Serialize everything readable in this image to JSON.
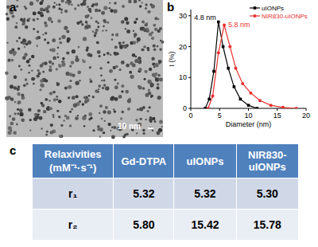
{
  "panel_labels": [
    "a",
    "b",
    "c"
  ],
  "image": {
    "scale_bar": "10 nm"
  },
  "chart_data": {
    "type": "line",
    "xlabel": "Diameter (nm)",
    "ylabel": "I (%)",
    "xlim": [
      0,
      20
    ],
    "xticks": [
      0,
      5,
      10,
      15,
      20
    ],
    "ylim": [
      0,
      32
    ],
    "yticks": [
      0,
      10,
      20,
      30
    ],
    "legend": "upper right",
    "series": [
      {
        "name": "uIONPs",
        "color": "#000000",
        "marker": "square",
        "x": [
          2.5,
          3.2,
          4.0,
          4.8,
          5.6,
          6.5,
          7.5,
          8.6,
          10.0,
          11.5
        ],
        "values": [
          0,
          3,
          12,
          28,
          20,
          13,
          7,
          3,
          1,
          0
        ]
      },
      {
        "name": "NIR830-uIONPs",
        "color": "#e8312f",
        "marker": "circle",
        "x": [
          3.0,
          3.8,
          4.8,
          5.8,
          6.8,
          7.8,
          9.0,
          10.4,
          12.0,
          13.9,
          16.0,
          18.3
        ],
        "values": [
          0,
          4,
          18,
          27,
          20,
          13,
          8,
          5,
          2.5,
          1,
          0.3,
          0
        ]
      }
    ],
    "annotations": [
      {
        "text": "4.8 nm",
        "x": 4.8,
        "y": 28,
        "color": "#000000"
      },
      {
        "text": "5.8 nm",
        "x": 5.8,
        "y": 27,
        "color": "#e8312f"
      }
    ]
  },
  "table": {
    "header": [
      "Relaxivities (mM⁻¹·s⁻¹)",
      "Gd-DTPA",
      "uIONPs",
      "NIR830-uIONPs"
    ],
    "rows": [
      [
        "r₁",
        "5.32",
        "5.32",
        "5.30"
      ],
      [
        "r₂",
        "5.80",
        "15.42",
        "15.78"
      ]
    ]
  }
}
